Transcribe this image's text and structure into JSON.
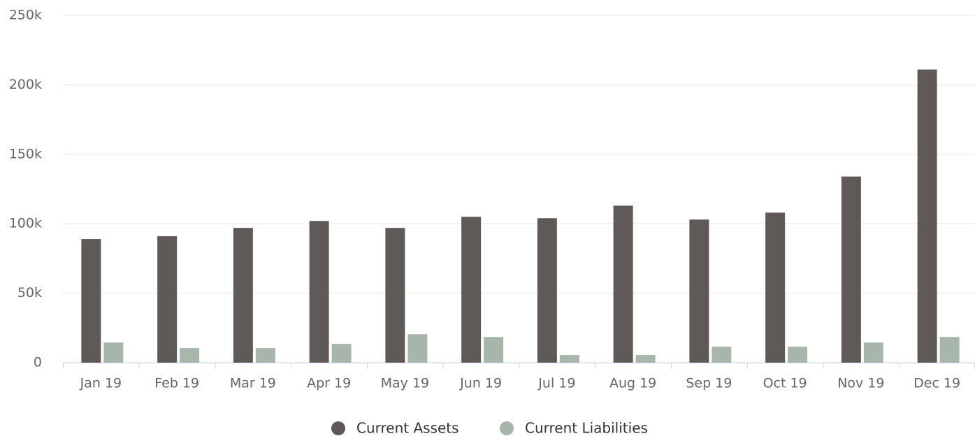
{
  "chart_data": {
    "type": "bar",
    "categories": [
      "Jan 19",
      "Feb 19",
      "Mar 19",
      "Apr 19",
      "May 19",
      "Jun 19",
      "Jul 19",
      "Aug 19",
      "Sep 19",
      "Oct 19",
      "Nov 19",
      "Dec 19"
    ],
    "series": [
      {
        "name": "Current Assets",
        "color": "#5f5a57",
        "values": [
          89000,
          91000,
          97000,
          102000,
          97000,
          105000,
          104000,
          113000,
          103000,
          108000,
          134000,
          211000
        ]
      },
      {
        "name": "Current Liabilities",
        "color": "#a8b5ab",
        "values": [
          14500,
          10500,
          10500,
          13500,
          20500,
          18500,
          5500,
          5500,
          11500,
          11500,
          14500,
          18500
        ]
      }
    ],
    "ylim": [
      0,
      250000
    ],
    "yticks": [
      0,
      {
        "value": 50000,
        "label": "50k"
      },
      {
        "value": 100000,
        "label": "100k"
      },
      {
        "value": 150000,
        "label": "150k"
      },
      {
        "value": 200000,
        "label": "200k"
      },
      {
        "value": 250000,
        "label": "250k"
      }
    ],
    "grid": true,
    "legend": "bottom"
  }
}
